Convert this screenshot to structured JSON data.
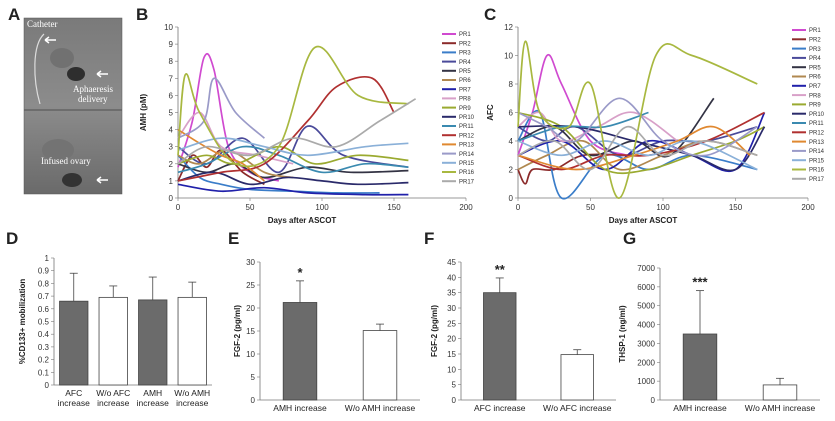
{
  "panels": {
    "A": "A",
    "B": "B",
    "C": "C",
    "D": "D",
    "E": "E",
    "F": "F",
    "G": "G"
  },
  "image_panel": {
    "catheter": "Catheter",
    "apheresis_1": "Aphaeresis",
    "apheresis_2": "delivery",
    "ovary": "Infused ovary"
  },
  "colors": {
    "grey_bar": "#6b6b6b",
    "white_bar": "#ffffff",
    "axis": "#777777"
  },
  "chart_data": [
    {
      "id": "B",
      "type": "line",
      "title": "",
      "xlabel": "Days after ASCOT",
      "ylabel": "AMH (pM)",
      "xlim": [
        0,
        200
      ],
      "ylim": [
        0,
        10
      ],
      "xticks": [
        "0",
        "50",
        "100",
        "150",
        "200"
      ],
      "yticks": [
        "0",
        "1",
        "2",
        "3",
        "4",
        "5",
        "6",
        "7",
        "8",
        "9",
        "10"
      ],
      "series": [
        {
          "name": "PR1",
          "color": "#d04ad0",
          "x": [
            0,
            10,
            18,
            25,
            35,
            50,
            70
          ],
          "y": [
            1.8,
            4.5,
            8.2,
            7.5,
            3,
            1.5,
            1.0
          ]
        },
        {
          "name": "PR2",
          "color": "#8b2a2a",
          "x": [
            0,
            10,
            20,
            30,
            45,
            60
          ],
          "y": [
            1.0,
            2.5,
            1.8,
            2.8,
            1.5,
            0.8
          ]
        },
        {
          "name": "PR3",
          "color": "#3a7dc9",
          "x": [
            0,
            15,
            30,
            50,
            80,
            110,
            140
          ],
          "y": [
            2.5,
            1.2,
            0.8,
            0.5,
            0.4,
            0.3,
            0.3
          ]
        },
        {
          "name": "PR4",
          "color": "#4a4a9a",
          "x": [
            0,
            20,
            45,
            70,
            90,
            115,
            160
          ],
          "y": [
            3.0,
            2.0,
            3.5,
            1.5,
            4.2,
            2.5,
            1.8
          ]
        },
        {
          "name": "PR5",
          "color": "#333344",
          "x": [
            0,
            20,
            40,
            60,
            90,
            120,
            160
          ],
          "y": [
            2.0,
            1.5,
            2.0,
            1.2,
            1.8,
            1.5,
            1.6
          ]
        },
        {
          "name": "PR6",
          "color": "#b08850",
          "x": [
            0,
            15,
            35,
            60,
            80
          ],
          "y": [
            2.5,
            2.0,
            2.8,
            1.5,
            1.2
          ]
        },
        {
          "name": "PR7",
          "color": "#2020aa",
          "x": [
            0,
            30,
            60,
            90,
            130,
            160
          ],
          "y": [
            0.8,
            0.4,
            0.6,
            0.3,
            0.2,
            0.2
          ]
        },
        {
          "name": "PR8",
          "color": "#d8a0c8",
          "x": [
            0,
            15,
            30,
            55,
            80
          ],
          "y": [
            3.5,
            5.0,
            3.0,
            2.5,
            2.0
          ]
        },
        {
          "name": "PR9",
          "color": "#9aaa30",
          "x": [
            0,
            20,
            40,
            70,
            95,
            125,
            160
          ],
          "y": [
            2.0,
            2.5,
            2.0,
            3.0,
            2.0,
            2.5,
            2.2
          ]
        },
        {
          "name": "PR10",
          "color": "#2a2a6a",
          "x": [
            0,
            25,
            50,
            75,
            100,
            125,
            160
          ],
          "y": [
            1.0,
            1.5,
            0.8,
            1.2,
            1.0,
            0.8,
            0.9
          ]
        },
        {
          "name": "PR11",
          "color": "#3a8ab0",
          "x": [
            0,
            20,
            45,
            70,
            100,
            130,
            160
          ],
          "y": [
            1.5,
            2.0,
            3.0,
            2.5,
            1.5,
            2.0,
            1.8
          ]
        },
        {
          "name": "PR12",
          "color": "#b03030",
          "x": [
            0,
            30,
            60,
            90,
            110,
            135,
            150
          ],
          "y": [
            1.0,
            1.5,
            2.0,
            4.5,
            6.5,
            7.0,
            5.0
          ]
        },
        {
          "name": "PR13",
          "color": "#e08830",
          "x": [
            0,
            15,
            30,
            45,
            60
          ],
          "y": [
            4.0,
            3.2,
            2.5,
            2.0,
            1.0
          ]
        },
        {
          "name": "PR14",
          "color": "#9a9ac8",
          "x": [
            0,
            18,
            25,
            40,
            60
          ],
          "y": [
            3.5,
            4.5,
            7.0,
            5.0,
            3.5
          ]
        },
        {
          "name": "PR15",
          "color": "#8ab0d8",
          "x": [
            0,
            30,
            60,
            90,
            130,
            160
          ],
          "y": [
            2.8,
            3.5,
            3.0,
            2.5,
            3.0,
            3.2
          ]
        },
        {
          "name": "PR16",
          "color": "#a8b840",
          "x": [
            0,
            5,
            15,
            40,
            70,
            95,
            125,
            160
          ],
          "y": [
            2.5,
            7.2,
            5.0,
            2.0,
            3.0,
            8.8,
            6.0,
            5.5
          ]
        },
        {
          "name": "PR17",
          "color": "#aaaaaa",
          "x": [
            0,
            20,
            50,
            80,
            110,
            140,
            165
          ],
          "y": [
            2.0,
            3.0,
            2.5,
            3.5,
            3.0,
            4.5,
            5.8
          ]
        }
      ]
    },
    {
      "id": "C",
      "type": "line",
      "title": "",
      "xlabel": "Days after ASCOT",
      "ylabel": "AFC",
      "xlim": [
        0,
        200
      ],
      "ylim": [
        0,
        12
      ],
      "xticks": [
        "0",
        "50",
        "100",
        "150",
        "200"
      ],
      "yticks": [
        "0",
        "2",
        "4",
        "6",
        "8",
        "10",
        "12"
      ],
      "series": [
        {
          "name": "PR1",
          "color": "#d04ad0",
          "x": [
            0,
            10,
            20,
            30,
            50,
            75
          ],
          "y": [
            3,
            6,
            10,
            8,
            4,
            3
          ]
        },
        {
          "name": "PR2",
          "color": "#8b2a2a",
          "x": [
            0,
            5,
            10,
            25,
            45,
            75
          ],
          "y": [
            2,
            1,
            2,
            2,
            3,
            3
          ]
        },
        {
          "name": "PR3",
          "color": "#3a7dc9",
          "x": [
            0,
            15,
            30,
            60,
            90,
            120,
            165
          ],
          "y": [
            4,
            6,
            0,
            3,
            2,
            3,
            2
          ]
        },
        {
          "name": "PR4",
          "color": "#4a4a9a",
          "x": [
            0,
            20,
            40,
            70,
            100,
            130,
            165
          ],
          "y": [
            5,
            4,
            5,
            3,
            4,
            4,
            5
          ]
        },
        {
          "name": "PR5",
          "color": "#333344",
          "x": [
            0,
            25,
            50,
            80,
            105,
            135
          ],
          "y": [
            4,
            5,
            3,
            4,
            3,
            7
          ]
        },
        {
          "name": "PR6",
          "color": "#b08850",
          "x": [
            0,
            20,
            45,
            70,
            100,
            130,
            165
          ],
          "y": [
            2,
            3,
            4,
            2,
            3,
            4,
            3
          ]
        },
        {
          "name": "PR7",
          "color": "#2020aa",
          "x": [
            0,
            30,
            60,
            90,
            120,
            150,
            170
          ],
          "y": [
            3,
            4,
            2,
            4,
            3,
            2,
            6
          ]
        },
        {
          "name": "PR8",
          "color": "#d8a0c8",
          "x": [
            0,
            15,
            30,
            55,
            80,
            110
          ],
          "y": [
            5,
            6,
            4,
            5,
            6,
            4
          ]
        },
        {
          "name": "PR9",
          "color": "#9aaa30",
          "x": [
            0,
            30,
            60,
            90,
            120,
            150,
            170
          ],
          "y": [
            6,
            5,
            2,
            2,
            3,
            4,
            5
          ]
        },
        {
          "name": "PR10",
          "color": "#2a2a6a",
          "x": [
            0,
            40,
            80,
            120,
            150,
            170
          ],
          "y": [
            5,
            5,
            4,
            3,
            2,
            5
          ]
        },
        {
          "name": "PR11",
          "color": "#3a8ab0",
          "x": [
            0,
            30,
            60,
            90
          ],
          "y": [
            4,
            5,
            5,
            6
          ]
        },
        {
          "name": "PR12",
          "color": "#b03030",
          "x": [
            0,
            30,
            60,
            90,
            130,
            170
          ],
          "y": [
            3,
            2,
            3,
            3,
            4,
            6
          ]
        },
        {
          "name": "PR13",
          "color": "#e08830",
          "x": [
            0,
            40,
            80,
            110,
            135,
            160
          ],
          "y": [
            3,
            2,
            3,
            4,
            5,
            3
          ]
        },
        {
          "name": "PR14",
          "color": "#9a9ac8",
          "x": [
            0,
            20,
            40,
            70,
            100,
            130,
            165
          ],
          "y": [
            6,
            5,
            4,
            7,
            4,
            3,
            5
          ]
        },
        {
          "name": "PR15",
          "color": "#8ab0d8",
          "x": [
            0,
            30,
            60,
            90,
            120,
            165
          ],
          "y": [
            4,
            3,
            4,
            3,
            4,
            2
          ]
        },
        {
          "name": "PR16",
          "color": "#a8b840",
          "x": [
            0,
            5,
            15,
            35,
            50,
            70,
            95,
            120,
            165
          ],
          "y": [
            5,
            11,
            6,
            5,
            8,
            0,
            10,
            10,
            8
          ]
        },
        {
          "name": "PR17",
          "color": "#aaaaaa",
          "x": [
            0,
            25,
            50,
            75,
            100,
            130,
            165
          ],
          "y": [
            3,
            4,
            2,
            5,
            3,
            4,
            3
          ]
        }
      ]
    },
    {
      "id": "D",
      "type": "bar",
      "ylabel": "%CD133+ mobilization",
      "ylim": [
        0,
        1
      ],
      "yticks": [
        "0",
        "0.1",
        "0.2",
        "0.3",
        "0.4",
        "0.5",
        "0.6",
        "0.7",
        "0.8",
        "0.9",
        "1"
      ],
      "categories": [
        [
          "AFC",
          "increase"
        ],
        [
          "W/o AFC",
          "increase"
        ],
        [
          "AMH",
          "increase"
        ],
        [
          "W/o AMH",
          "increase"
        ]
      ],
      "values": [
        0.66,
        0.69,
        0.67,
        0.69
      ],
      "errors": [
        0.22,
        0.09,
        0.18,
        0.12
      ],
      "fills": [
        "grey",
        "white",
        "grey",
        "white"
      ],
      "stars": [
        "",
        "",
        "",
        ""
      ]
    },
    {
      "id": "E",
      "type": "bar",
      "ylabel": "FGF-2 (pg/ml)",
      "ylim": [
        0,
        30
      ],
      "yticks": [
        "0",
        "5",
        "10",
        "15",
        "20",
        "25",
        "30"
      ],
      "categories": [
        [
          "AMH increase"
        ],
        [
          "W/o AMH increase"
        ]
      ],
      "values": [
        21.2,
        15.1
      ],
      "errors": [
        4.7,
        1.4
      ],
      "fills": [
        "grey",
        "white"
      ],
      "stars": [
        "*",
        ""
      ]
    },
    {
      "id": "F",
      "type": "bar",
      "ylabel": "FGF-2 (pg/ml)",
      "ylim": [
        0,
        45
      ],
      "yticks": [
        "0",
        "5",
        "10",
        "15",
        "20",
        "25",
        "30",
        "35",
        "40",
        "45"
      ],
      "categories": [
        [
          "AFC increase"
        ],
        [
          "W/o AFC increase"
        ]
      ],
      "values": [
        35,
        14.8
      ],
      "errors": [
        4.8,
        1.6
      ],
      "fills": [
        "grey",
        "white"
      ],
      "stars": [
        "**",
        ""
      ]
    },
    {
      "id": "G",
      "type": "bar",
      "ylabel": "THSP-1 (ng/ml)",
      "ylim": [
        0,
        7000
      ],
      "yticks": [
        "0",
        "1000",
        "2000",
        "3000",
        "4000",
        "5000",
        "6000",
        "7000"
      ],
      "categories": [
        [
          "AMH increase"
        ],
        [
          "W/o AMH increase"
        ]
      ],
      "values": [
        3500,
        800
      ],
      "errors": [
        2300,
        350
      ],
      "fills": [
        "grey",
        "white"
      ],
      "stars": [
        "***",
        ""
      ]
    }
  ]
}
